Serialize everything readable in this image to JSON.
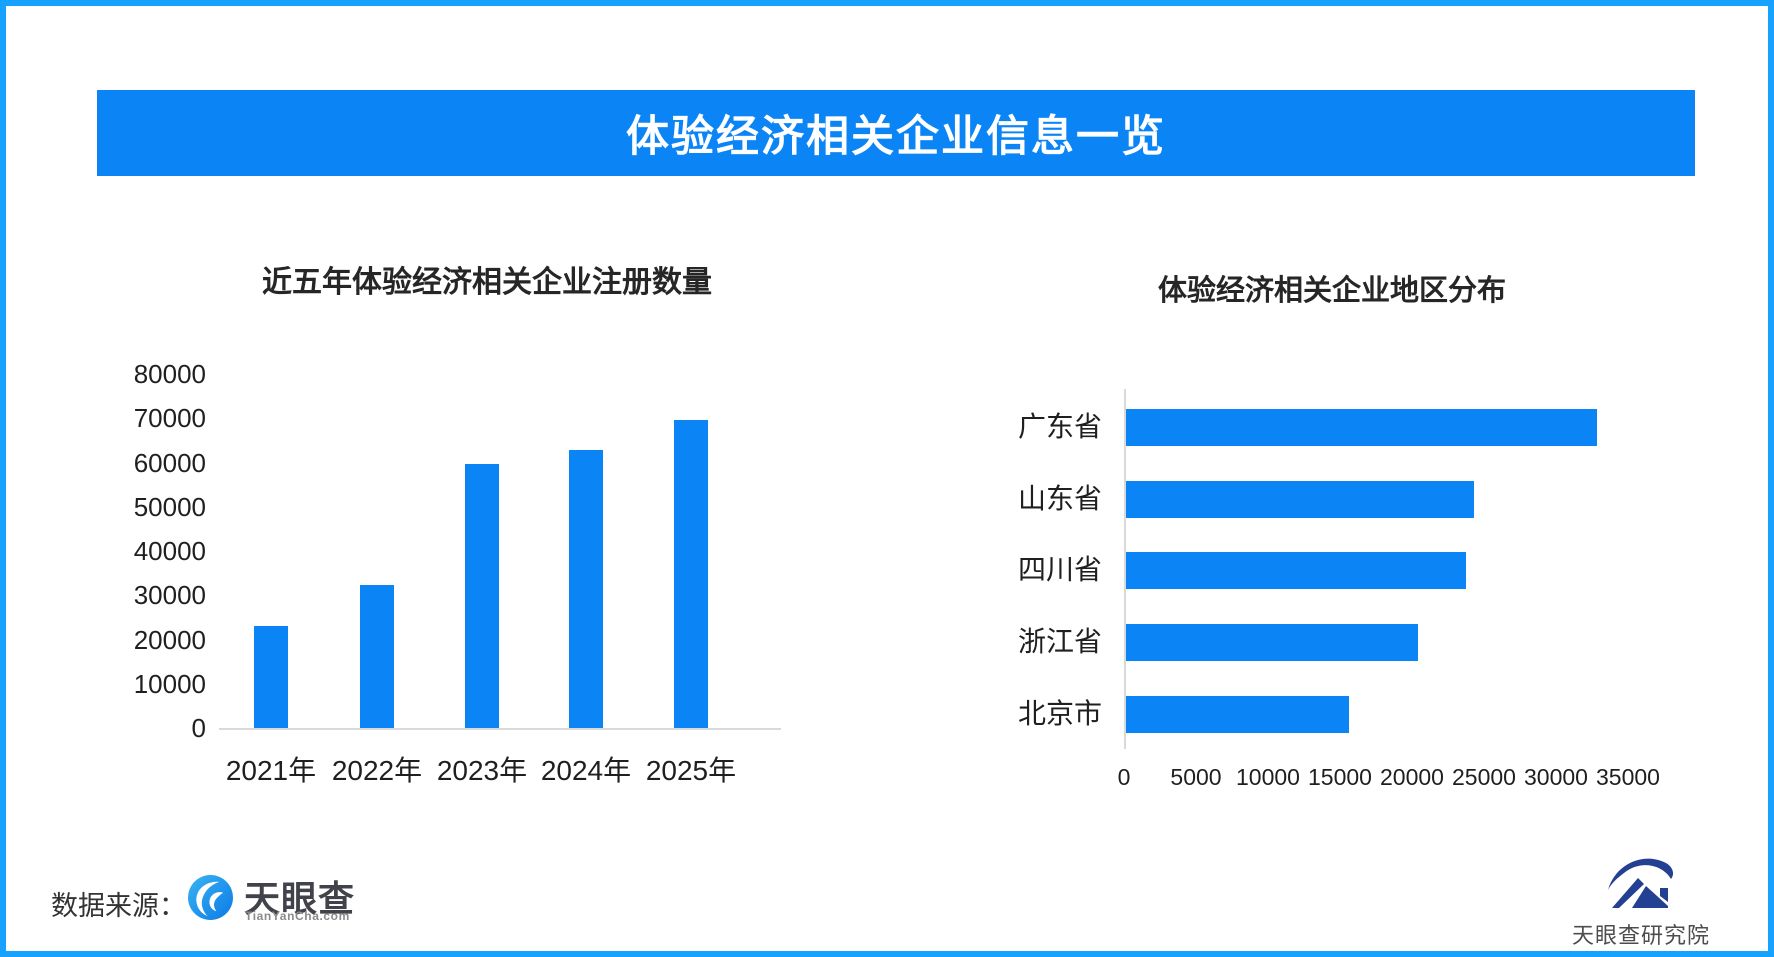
{
  "page": {
    "background": "#ffffff",
    "border_color": "#18a2ff"
  },
  "banner": {
    "title": "体验经济相关企业信息一览",
    "bg_color": "#0b85f6",
    "text_color": "#ffffff"
  },
  "chart_data": [
    {
      "type": "bar",
      "orientation": "vertical",
      "title": "近五年体验经济相关企业注册数量",
      "categories": [
        "2021年",
        "2022年",
        "2023年",
        "2024年",
        "2025年"
      ],
      "values": [
        23000,
        32400,
        59700,
        62900,
        69500
      ],
      "xlabel": "",
      "ylabel": "",
      "ylim": [
        0,
        80000
      ],
      "ytick_step": 10000,
      "bar_color": "#0b85f6",
      "grid": false,
      "legend": null
    },
    {
      "type": "bar",
      "orientation": "horizontal",
      "title": "体验经济相关企业地区分布",
      "categories": [
        "广东省",
        "山东省",
        "四川省",
        "浙江省",
        "北京市"
      ],
      "values": [
        32700,
        24200,
        23600,
        20300,
        15500
      ],
      "xlabel": "",
      "ylabel": "",
      "xlim": [
        0,
        35000
      ],
      "xtick_step": 5000,
      "bar_color": "#0b85f6",
      "grid": false,
      "legend": null
    }
  ],
  "footer": {
    "source_label": "数据来源：",
    "tyc_logo": {
      "name": "天眼查",
      "domain": "TianYanCha.com",
      "circle_color": "#1a9af0"
    },
    "institute_logo": {
      "text": "天眼查研究院",
      "emblem_color": "#234093"
    }
  }
}
